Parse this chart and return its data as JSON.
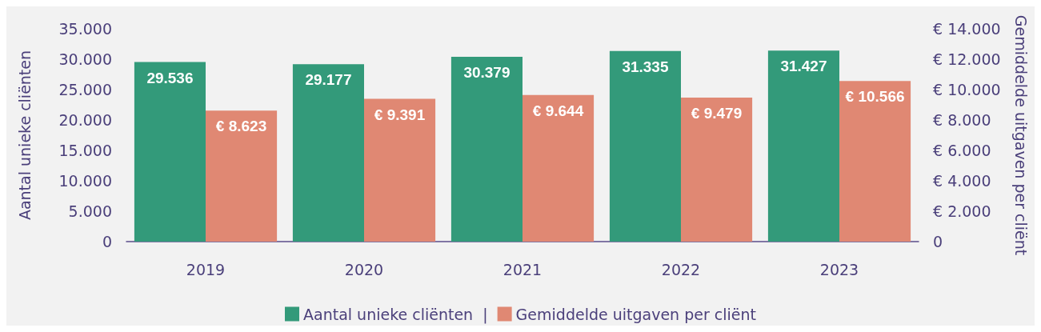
{
  "chart_data": {
    "type": "bar",
    "ylabel": "Aantal unieke cliënten",
    "y2label": "Gemiddelde uitgaven per cliënt",
    "categories": [
      "2019",
      "2020",
      "2021",
      "2022",
      "2023"
    ],
    "series": [
      {
        "name": "Aantal unieke cliënten  |",
        "color": "#339a7a",
        "values": [
          29536,
          29177,
          30379,
          31335,
          31427
        ],
        "value_labels": [
          "29.536",
          "29.177",
          "30.379",
          "31.335",
          "31.427"
        ]
      },
      {
        "name": "Gemiddelde uitgaven per cliënt",
        "color": "#e08873",
        "axis": "y2",
        "values": [
          8623,
          9391,
          9644,
          9479,
          10566
        ],
        "value_labels": [
          "€ 8.623",
          "€ 9.391",
          "€ 9.644",
          "€ 9.479",
          "€ 10.566"
        ]
      }
    ],
    "ylim": [
      0,
      35000
    ],
    "yticks": [
      {
        "value": 0,
        "label": "0"
      },
      {
        "value": 5000,
        "label": "5.000"
      },
      {
        "value": 10000,
        "label": "10.000"
      },
      {
        "value": 15000,
        "label": "15.000"
      },
      {
        "value": 20000,
        "label": "20.000"
      },
      {
        "value": 25000,
        "label": "25.000"
      },
      {
        "value": 30000,
        "label": "30.000"
      },
      {
        "value": 35000,
        "label": "35.000"
      }
    ],
    "y2lim": [
      0,
      14000
    ],
    "y2ticks": [
      {
        "value": 0,
        "label": "0"
      },
      {
        "value": 2000,
        "label": "€ 2.000"
      },
      {
        "value": 4000,
        "label": "€ 4.000"
      },
      {
        "value": 6000,
        "label": "€ 6.000"
      },
      {
        "value": 8000,
        "label": "€ 8.000"
      },
      {
        "value": 10000,
        "label": "€ 10.000"
      },
      {
        "value": 12000,
        "label": "€ 12.000"
      },
      {
        "value": 14000,
        "label": "€ 14.000"
      }
    ],
    "grid": false,
    "legend": "bottom"
  }
}
